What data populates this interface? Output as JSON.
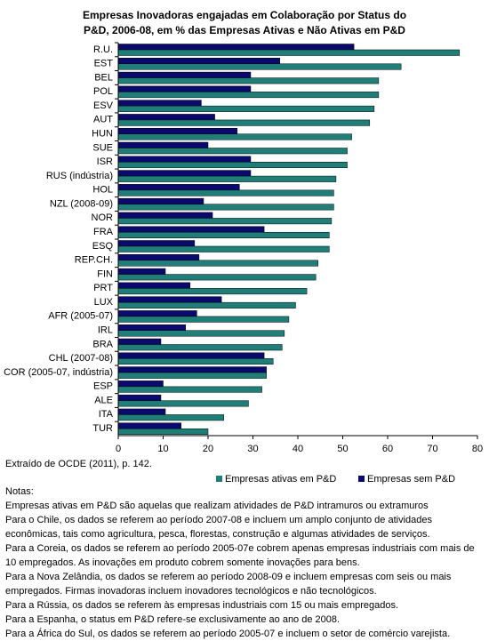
{
  "chart_data": {
    "type": "hbar",
    "title": [
      "Empresas Inovadoras engajadas em Colaboração por Status do",
      "P&D, 2006-08, em % das Empresas Ativas e Não Ativas em P&D"
    ],
    "categories": [
      "R.U.",
      "EST",
      "BEL",
      "POL",
      "ESV",
      "AUT",
      "HUN",
      "SUE",
      "ISR",
      "RUS (indústria)",
      "HOL",
      "NZL (2008-09)",
      "NOR",
      "FRA",
      "ESQ",
      "REP.CH.",
      "FIN",
      "PRT",
      "LUX",
      "AFR (2005-07)",
      "IRL",
      "BRA",
      "CHL (2007-08)",
      "COR (2005-07, indústria)",
      "ESP",
      "ALE",
      "ITA",
      "TUR"
    ],
    "series": [
      {
        "name": "Empresas ativas em P&D",
        "color": "#1f7f78",
        "values": [
          76,
          63,
          58,
          58,
          57,
          56,
          52,
          51,
          51,
          48.5,
          48,
          48,
          47.5,
          47,
          47,
          44.5,
          44,
          42,
          39.5,
          38,
          37,
          36.5,
          34.5,
          33,
          32,
          29,
          23.5,
          20
        ]
      },
      {
        "name": "Empresas sem P&D",
        "color": "#0a0a6e",
        "values": [
          52.5,
          36,
          29.5,
          29.5,
          18.5,
          21.5,
          26.5,
          20,
          29.5,
          29.5,
          27,
          19,
          21,
          32.5,
          17,
          18,
          10.5,
          16,
          23,
          17.5,
          15,
          9.5,
          32.5,
          33,
          10,
          9.5,
          10.5,
          14
        ]
      }
    ],
    "xlim": [
      0,
      80
    ],
    "xticks": [
      0,
      10,
      20,
      30,
      40,
      50,
      60,
      70,
      80
    ],
    "grid": false,
    "source": "Extraído de OCDE (2011), p. 142.",
    "notes_title": "Notas:",
    "notes": [
      "Empresas ativas em P&D são aquelas que realizam atividades de P&D intramuros ou extramuros",
      "Para o Chile, os dados se referem ao período 2007-08 e incluem um amplo conjunto de atividades econômicas, tais como agricultura, pesca, florestas, construção e algumas atividades de serviços.",
      "Para a Coreia, os dados se referem ao período 2005-07e cobrem apenas empresas industriais com mais de 10 empregados. As inovações em produto cobrem somente inovações para bens.",
      "Para a Nova Zelândia, os dados se referem ao período 2008-09 e incluem empresas com seis ou mais empregados. Firmas inovadoras incluem inovadores tecnológicos e não tecnológicos.",
      "Para a Rússia, os dados se referem às empresas industriais com 15 ou mais empregados.",
      "Para a Espanha, o status em P&D refere-se exclusivamente ao ano de 2008.",
      "Para a África do Sul, os dados se referem ao período 2005-07 e incluem o setor de comércio varejista."
    ]
  }
}
